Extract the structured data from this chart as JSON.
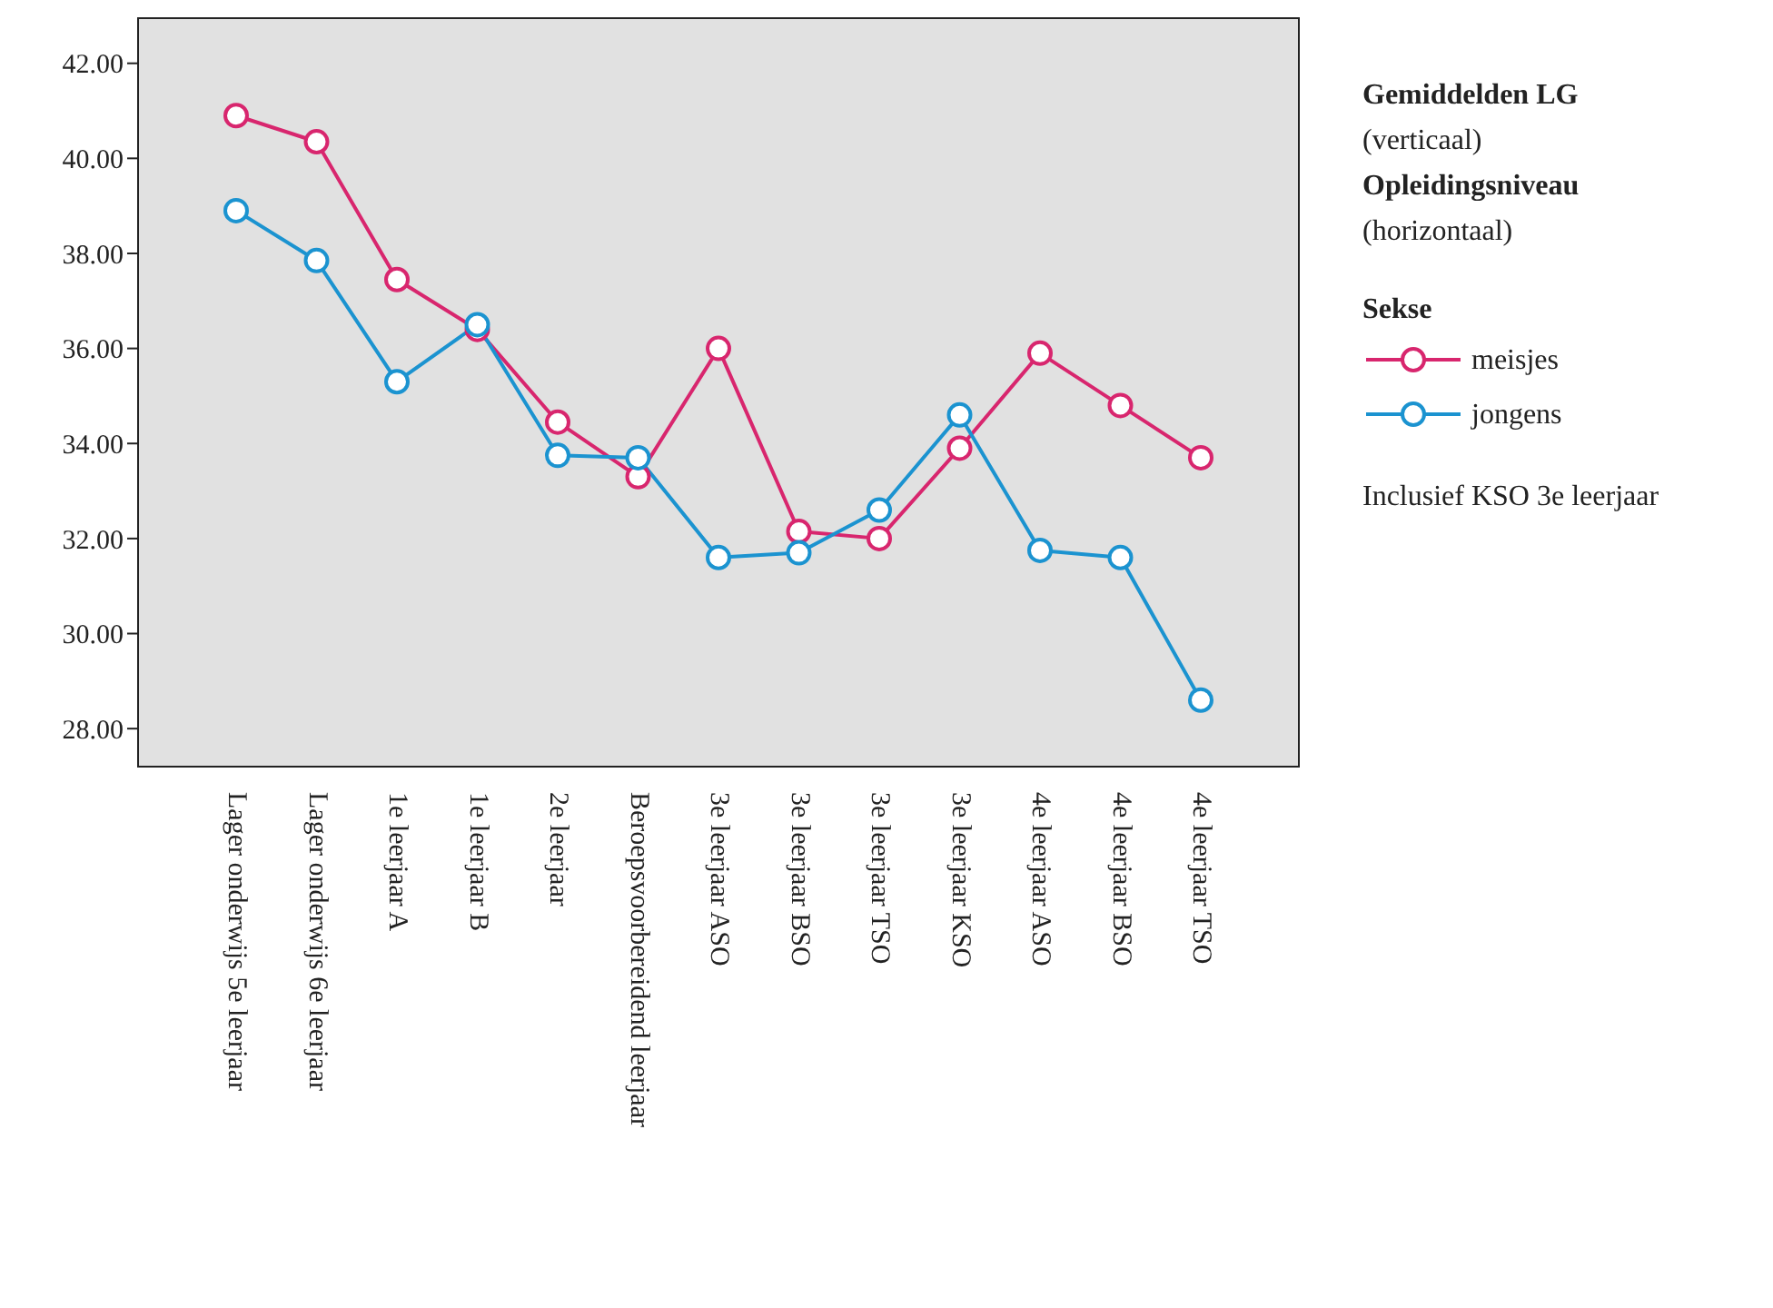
{
  "chart_data": {
    "type": "line",
    "categories": [
      "Lager onderwijs 5e leerjaar",
      "Lager onderwijs 6e leerjaar",
      "1e leerjaar A",
      "1e leerjaar B",
      "2e leerjaar",
      "Beroepsvoorbereidend leerjaar",
      "3e leerjaar ASO",
      "3e leerjaar BSO",
      "3e leerjaar TSO",
      "3e leerjaar KSO",
      "4e leerjaar ASO",
      "4e leerjaar BSO",
      "4e leerjaar TSO"
    ],
    "series": [
      {
        "name": "meisjes",
        "color": "#d8266e",
        "values": [
          40.9,
          40.35,
          37.45,
          36.4,
          34.45,
          33.3,
          36.0,
          32.15,
          32.0,
          33.9,
          35.9,
          34.8,
          33.7
        ]
      },
      {
        "name": "jongens",
        "color": "#1b93d0",
        "values": [
          38.9,
          37.85,
          35.3,
          36.5,
          33.75,
          33.7,
          31.6,
          31.7,
          32.6,
          34.6,
          31.75,
          31.6,
          28.6
        ]
      }
    ],
    "ylim": [
      27.2,
      42.95
    ],
    "yticks": [
      {
        "value": 28,
        "label": "28.00"
      },
      {
        "value": 30,
        "label": "30.00"
      },
      {
        "value": 32,
        "label": "32.00"
      },
      {
        "value": 34,
        "label": "34.00"
      },
      {
        "value": 36,
        "label": "36.00"
      },
      {
        "value": 38,
        "label": "38.00"
      },
      {
        "value": 40,
        "label": "40.00"
      },
      {
        "value": 42,
        "label": "42.00"
      }
    ],
    "marker": "circle",
    "line_style": "solid",
    "legend": "right",
    "legend_title": "Sekse",
    "annotations": [
      "Gemiddelden LG",
      "(verticaal)",
      "Opleidingsniveau",
      "(horizontaal)",
      "Inclusief KSO 3e leerjaar"
    ]
  }
}
